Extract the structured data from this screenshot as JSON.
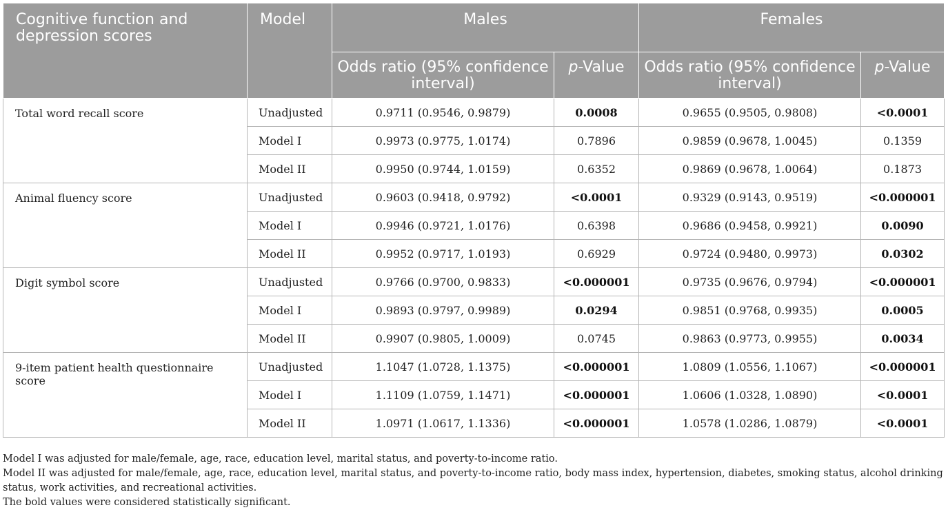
{
  "header": {
    "metric_label": "Cognitive function and depression scores",
    "model_label": "Model",
    "males_label": "Males",
    "females_label": "Females",
    "or_label": "Odds ratio (95% confidence interval)",
    "p_italic": "p",
    "p_suffix": "-Value"
  },
  "rows": [
    {
      "metric": "Total word recall score",
      "model": "Unadjusted",
      "m_or": "0.9711 (0.9546, 0.9879)",
      "m_p": "0.0008",
      "m_sig": true,
      "f_or": "0.9655 (0.9505, 0.9808)",
      "f_p": "<0.0001",
      "f_sig": true
    },
    {
      "metric": "",
      "model": "Model I",
      "m_or": "0.9973 (0.9775, 1.0174)",
      "m_p": "0.7896",
      "m_sig": false,
      "f_or": "0.9859 (0.9678, 1.0045)",
      "f_p": "0.1359",
      "f_sig": false
    },
    {
      "metric": "",
      "model": "Model II",
      "m_or": "0.9950 (0.9744, 1.0159)",
      "m_p": "0.6352",
      "m_sig": false,
      "f_or": "0.9869 (0.9678, 1.0064)",
      "f_p": "0.1873",
      "f_sig": false
    },
    {
      "metric": "Animal fluency score",
      "model": "Unadjusted",
      "m_or": "0.9603 (0.9418, 0.9792)",
      "m_p": "<0.0001",
      "m_sig": true,
      "f_or": "0.9329 (0.9143, 0.9519)",
      "f_p": "<0.000001",
      "f_sig": true
    },
    {
      "metric": "",
      "model": "Model I",
      "m_or": "0.9946 (0.9721, 1.0176)",
      "m_p": "0.6398",
      "m_sig": false,
      "f_or": "0.9686 (0.9458, 0.9921)",
      "f_p": "0.0090",
      "f_sig": true
    },
    {
      "metric": "",
      "model": "Model II",
      "m_or": "0.9952 (0.9717, 1.0193)",
      "m_p": "0.6929",
      "m_sig": false,
      "f_or": "0.9724 (0.9480, 0.9973)",
      "f_p": "0.0302",
      "f_sig": true
    },
    {
      "metric": "Digit symbol score",
      "model": "Unadjusted",
      "m_or": "0.9766 (0.9700, 0.9833)",
      "m_p": "<0.000001",
      "m_sig": true,
      "f_or": "0.9735 (0.9676, 0.9794)",
      "f_p": "<0.000001",
      "f_sig": true
    },
    {
      "metric": "",
      "model": "Model I",
      "m_or": "0.9893 (0.9797, 0.9989)",
      "m_p": "0.0294",
      "m_sig": true,
      "f_or": "0.9851 (0.9768, 0.9935)",
      "f_p": "0.0005",
      "f_sig": true
    },
    {
      "metric": "",
      "model": "Model II",
      "m_or": "0.9907 (0.9805, 1.0009)",
      "m_p": "0.0745",
      "m_sig": false,
      "f_or": "0.9863 (0.9773, 0.9955)",
      "f_p": "0.0034",
      "f_sig": true
    },
    {
      "metric": "9-item patient health questionnaire score",
      "model": "Unadjusted",
      "m_or": "1.1047 (1.0728, 1.1375)",
      "m_p": "<0.000001",
      "m_sig": true,
      "f_or": "1.0809 (1.0556, 1.1067)",
      "f_p": "<0.000001",
      "f_sig": true
    },
    {
      "metric": "",
      "model": "Model I",
      "m_or": "1.1109 (1.0759, 1.1471)",
      "m_p": "<0.000001",
      "m_sig": true,
      "f_or": "1.0606 (1.0328, 1.0890)",
      "f_p": "<0.0001",
      "f_sig": true
    },
    {
      "metric": "",
      "model": "Model II",
      "m_or": "1.0971 (1.0617, 1.1336)",
      "m_p": "<0.000001",
      "m_sig": true,
      "f_or": "1.0578 (1.0286, 1.0879)",
      "f_p": "<0.0001",
      "f_sig": true
    }
  ],
  "notes": [
    "Model I was adjusted for male/female, age, race, education level, marital status, and poverty-to-income ratio.",
    "Model II was adjusted for male/female, age, race, education level, marital status, and poverty-to-income ratio, body mass index, hypertension, diabetes, smoking status, alcohol drinking status, work activities, and recreational activities.",
    "The bold values were considered statistically significant."
  ],
  "colors": {
    "header_bg": "#9c9c9c",
    "header_text": "#ffffff",
    "border": "#b5b5b5",
    "body_text": "#222222"
  }
}
